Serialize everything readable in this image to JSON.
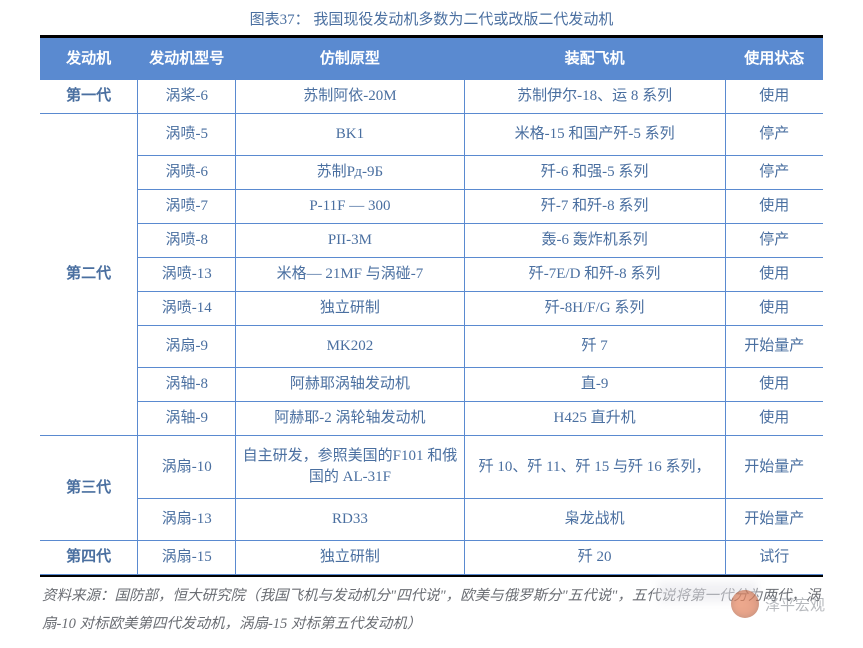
{
  "title": "图表37：  我国现役发动机多数为二代或改版二代发动机",
  "headers": [
    "发动机",
    "发动机型号",
    "仿制原型",
    "装配飞机",
    "使用状态"
  ],
  "groups": [
    {
      "gen": "第一代",
      "rows": [
        [
          "涡桨-6",
          "苏制阿依-20M",
          "苏制伊尔-18、运 8 系列",
          "使用",
          false
        ]
      ]
    },
    {
      "gen": "第二代",
      "rows": [
        [
          "涡喷-5",
          "BK1",
          "米格-15 和国产歼-5 系列",
          "停产",
          true
        ],
        [
          "涡喷-6",
          "苏制Рд-9Б",
          "歼-6 和强-5 系列",
          "停产",
          false
        ],
        [
          "涡喷-7",
          "P-11F — 300",
          "歼-7 和歼-8 系列",
          "使用",
          false
        ],
        [
          "涡喷-8",
          "PII-3M",
          "轰-6 轰炸机系列",
          "停产",
          false
        ],
        [
          "涡喷-13",
          "米格— 21MF 与涡碰-7",
          "歼-7E/D 和歼-8 系列",
          "使用",
          false
        ],
        [
          "涡喷-14",
          "独立研制",
          "歼-8H/F/G 系列",
          "使用",
          false
        ],
        [
          "涡扇-9",
          "MK202",
          "歼 7",
          "开始量产",
          true
        ],
        [
          "涡轴-8",
          "阿赫耶涡轴发动机",
          "直-9",
          "使用",
          false
        ],
        [
          "涡轴-9",
          "阿赫耶-2 涡轮轴发动机",
          "H425 直升机",
          "使用",
          false
        ]
      ]
    },
    {
      "gen": "第三代",
      "rows": [
        [
          "涡扇-10",
          "自主研发，参照美国的F101 和俄国的 AL-31F",
          "歼 10、歼 11、歼 15 与歼 16 系列，",
          "开始量产",
          true
        ],
        [
          "涡扇-13",
          "RD33",
          "枭龙战机",
          "开始量产",
          true
        ]
      ]
    },
    {
      "gen": "第四代",
      "rows": [
        [
          "涡扇-15",
          "独立研制",
          "歼 20",
          "试行",
          false
        ]
      ]
    }
  ],
  "source": "资料来源：国防部，恒大研究院（我国飞机与发动机分\"四代说\"，欧美与俄罗斯分\"五代说\"，五代说将第一代分为两代，涡扇-10 对标欧美第四代发动机，涡扇-15 对标第五代发动机）",
  "watermark": "泽平宏观",
  "colors": {
    "header_bg": "#5a8ad0",
    "text": "#4a6fa0",
    "source_text": "#6a6d73"
  }
}
